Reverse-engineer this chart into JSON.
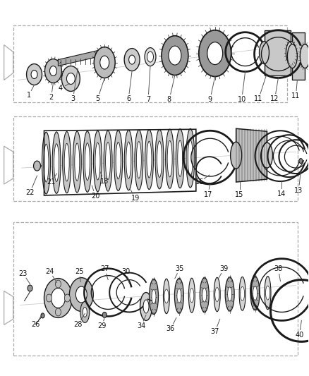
{
  "background_color": "#ffffff",
  "line_color": "#1a1a1a",
  "gray_dark": "#555555",
  "gray_mid": "#888888",
  "gray_light": "#cccccc",
  "part_fill_dark": "#888888",
  "part_fill_mid": "#bbbbbb",
  "part_fill_light": "#dddddd",
  "label_fs": 7.0,
  "leader_color": "#555555",
  "border_color": "#aaaaaa"
}
